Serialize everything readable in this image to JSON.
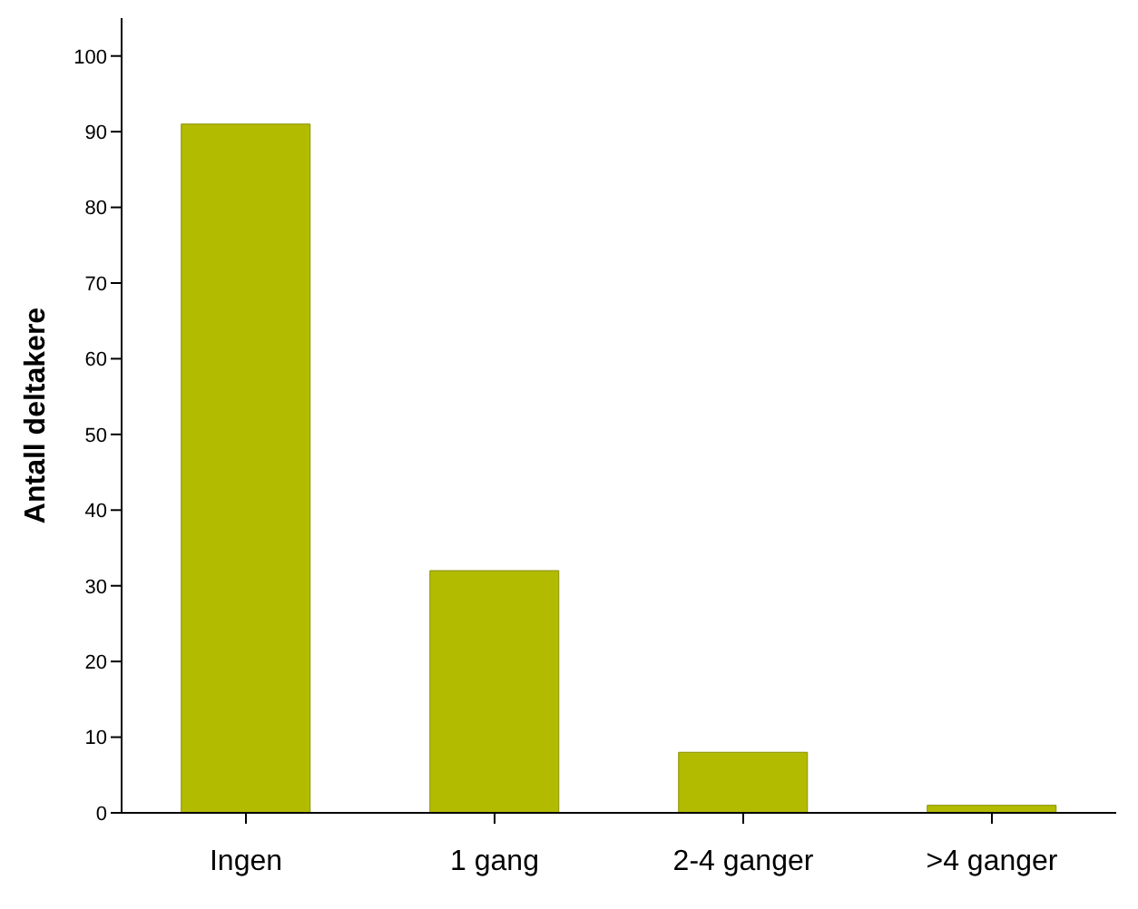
{
  "chart_data": {
    "type": "bar",
    "ylabel": "Antall deltakere",
    "categories": [
      "Ingen",
      "1 gang",
      "2-4 ganger",
      ">4 ganger"
    ],
    "values": [
      91,
      32,
      8,
      1
    ],
    "color": "#b2bb00",
    "ylim": [
      0,
      105
    ],
    "yticks": [
      0,
      10,
      20,
      30,
      40,
      50,
      60,
      70,
      80,
      90,
      100
    ],
    "grid": false
  }
}
